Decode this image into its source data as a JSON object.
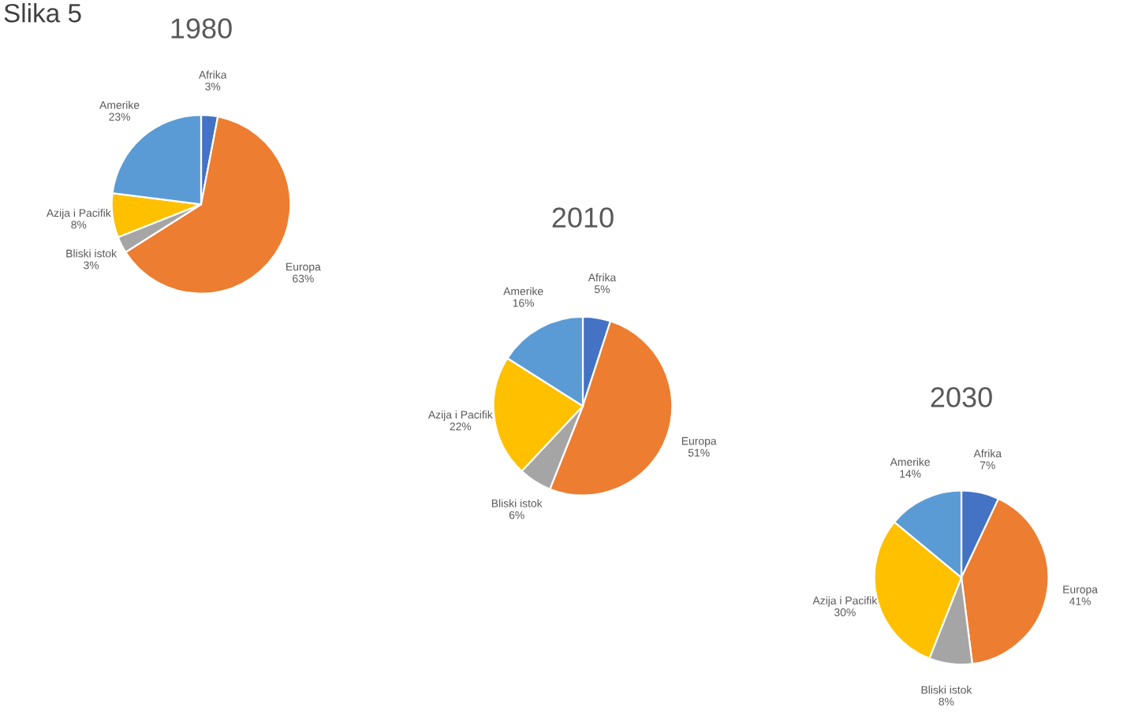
{
  "chart_data": [
    {
      "type": "pie",
      "title": "1980",
      "annotations": [
        "Slika 5"
      ],
      "categories": [
        "Afrika",
        "Europa",
        "Bliski istok",
        "Azija i Pacifik",
        "Amerike"
      ],
      "values": [
        3,
        63,
        3,
        8,
        23
      ],
      "value_labels": [
        "3%",
        "63%",
        "3%",
        "8%",
        "23%"
      ],
      "colors": [
        "#4472c4",
        "#ed7d31",
        "#a5a5a5",
        "#ffc000",
        "#5b9bd5"
      ]
    },
    {
      "type": "pie",
      "title": "2010",
      "categories": [
        "Afrika",
        "Europa",
        "Bliski istok",
        "Azija i Pacifik",
        "Amerike"
      ],
      "values": [
        5,
        51,
        6,
        22,
        16
      ],
      "value_labels": [
        "5%",
        "51%",
        "6%",
        "22%",
        "16%"
      ],
      "colors": [
        "#4472c4",
        "#ed7d31",
        "#a5a5a5",
        "#ffc000",
        "#5b9bd5"
      ]
    },
    {
      "type": "pie",
      "title": "2030",
      "categories": [
        "Afrika",
        "Europa",
        "Bliski istok",
        "Azija i Pacifik",
        "Amerike"
      ],
      "values": [
        7,
        41,
        8,
        30,
        14
      ],
      "value_labels": [
        "7%",
        "41%",
        "8%",
        "30%",
        "14%"
      ],
      "colors": [
        "#4472c4",
        "#ed7d31",
        "#a5a5a5",
        "#ffc000",
        "#5b9bd5"
      ]
    }
  ]
}
